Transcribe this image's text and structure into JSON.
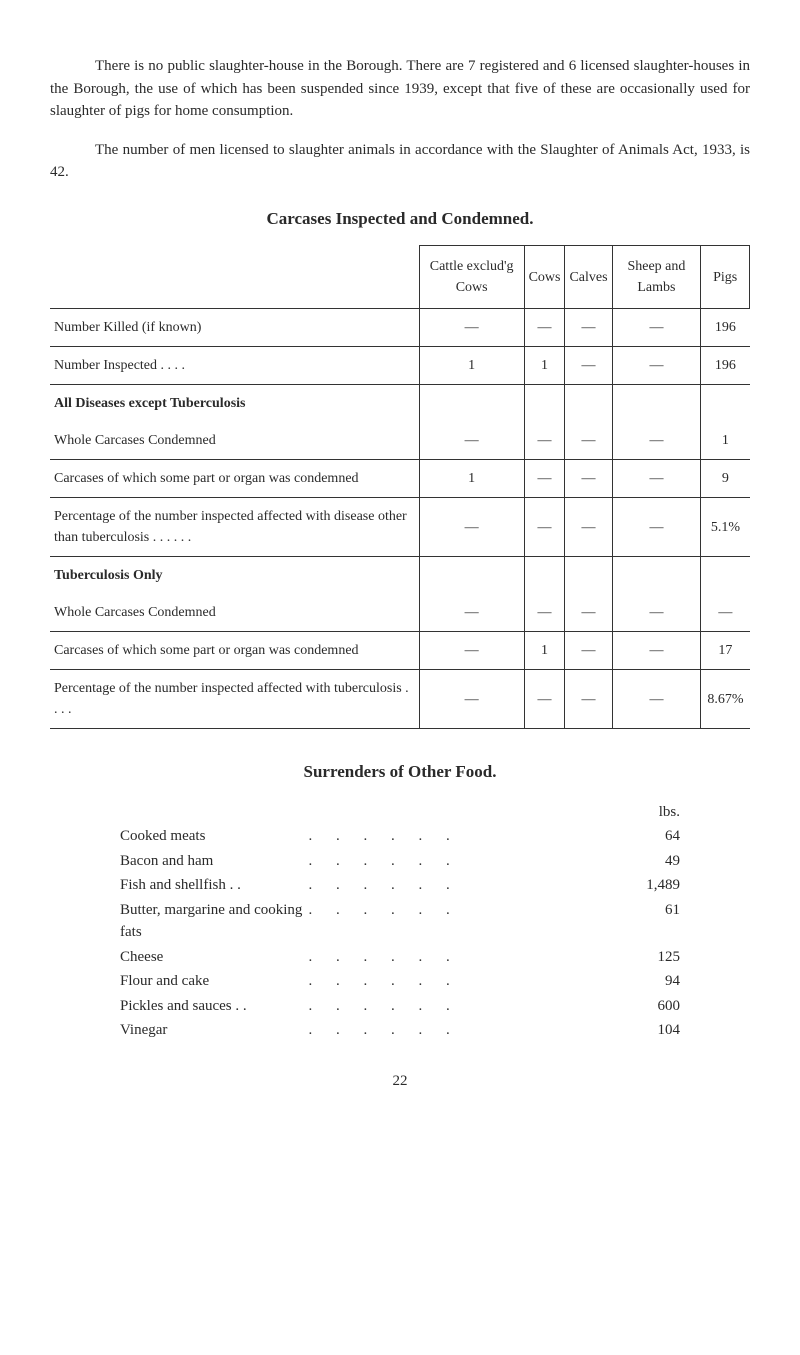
{
  "intro": {
    "p1": "There is no public slaughter-house in the Borough. There are 7 registered and 6 licensed slaughter-houses in the Borough, the use of which has been suspended since 1939, except that five of these are occasionally used for slaughter of pigs for home consumption.",
    "p2": "The number of men licensed to slaughter animals in accordance with the Slaughter of Animals Act, 1933, is 42."
  },
  "carcases": {
    "title": "Carcases Inspected and Condemned.",
    "columns": [
      "Cattle exclud'g Cows",
      "Cows",
      "Calves",
      "Sheep and Lambs",
      "Pigs"
    ],
    "rows": [
      {
        "label": "Number Killed (if known)",
        "cells": [
          "—",
          "—",
          "—",
          "—",
          "196"
        ],
        "bold": false,
        "border": true
      },
      {
        "label": "Number Inspected . .     . .",
        "cells": [
          "1",
          "1",
          "—",
          "—",
          "196"
        ],
        "bold": false,
        "border": true
      },
      {
        "label": "All Diseases except Tuberculosis",
        "cells": [
          "",
          "",
          "",
          "",
          ""
        ],
        "bold": true,
        "border": false
      },
      {
        "label": "Whole Carcases Condemned",
        "cells": [
          "—",
          "—",
          "—",
          "—",
          "1"
        ],
        "bold": false,
        "border": true
      },
      {
        "label": "Carcases of which some part or organ was condemned",
        "cells": [
          "1",
          "—",
          "—",
          "—",
          "9"
        ],
        "bold": false,
        "border": true
      },
      {
        "label": "Percentage of the number inspected affected with disease other than tuberculosis     . .     . .     . .",
        "cells": [
          "—",
          "—",
          "—",
          "—",
          "5.1%"
        ],
        "bold": false,
        "border": true
      },
      {
        "label": "Tuberculosis Only",
        "cells": [
          "",
          "",
          "",
          "",
          ""
        ],
        "bold": true,
        "border": false
      },
      {
        "label": "Whole Carcases Condemned",
        "cells": [
          "—",
          "—",
          "—",
          "—",
          "—"
        ],
        "bold": false,
        "border": true
      },
      {
        "label": "Carcases of which some part or organ was condemned",
        "cells": [
          "—",
          "1",
          "—",
          "—",
          "17"
        ],
        "bold": false,
        "border": true
      },
      {
        "label": "Percentage of the number inspected affected with tuberculosis     . .     . .",
        "cells": [
          "—",
          "—",
          "—",
          "—",
          "8.67%"
        ],
        "bold": false,
        "border": true
      }
    ]
  },
  "surrenders": {
    "title": "Surrenders of Other Food.",
    "unit_label": "lbs.",
    "items": [
      {
        "label": "Cooked meats",
        "value": "64"
      },
      {
        "label": "Bacon and ham",
        "value": "49"
      },
      {
        "label": "Fish and shellfish   . .",
        "value": "1,489"
      },
      {
        "label": "Butter, margarine and cooking fats",
        "value": "61"
      },
      {
        "label": "Cheese",
        "value": "125"
      },
      {
        "label": "Flour and cake",
        "value": "94"
      },
      {
        "label": "Pickles and sauces  . .",
        "value": "600"
      },
      {
        "label": "Vinegar",
        "value": "104"
      }
    ]
  },
  "page_number": "22"
}
